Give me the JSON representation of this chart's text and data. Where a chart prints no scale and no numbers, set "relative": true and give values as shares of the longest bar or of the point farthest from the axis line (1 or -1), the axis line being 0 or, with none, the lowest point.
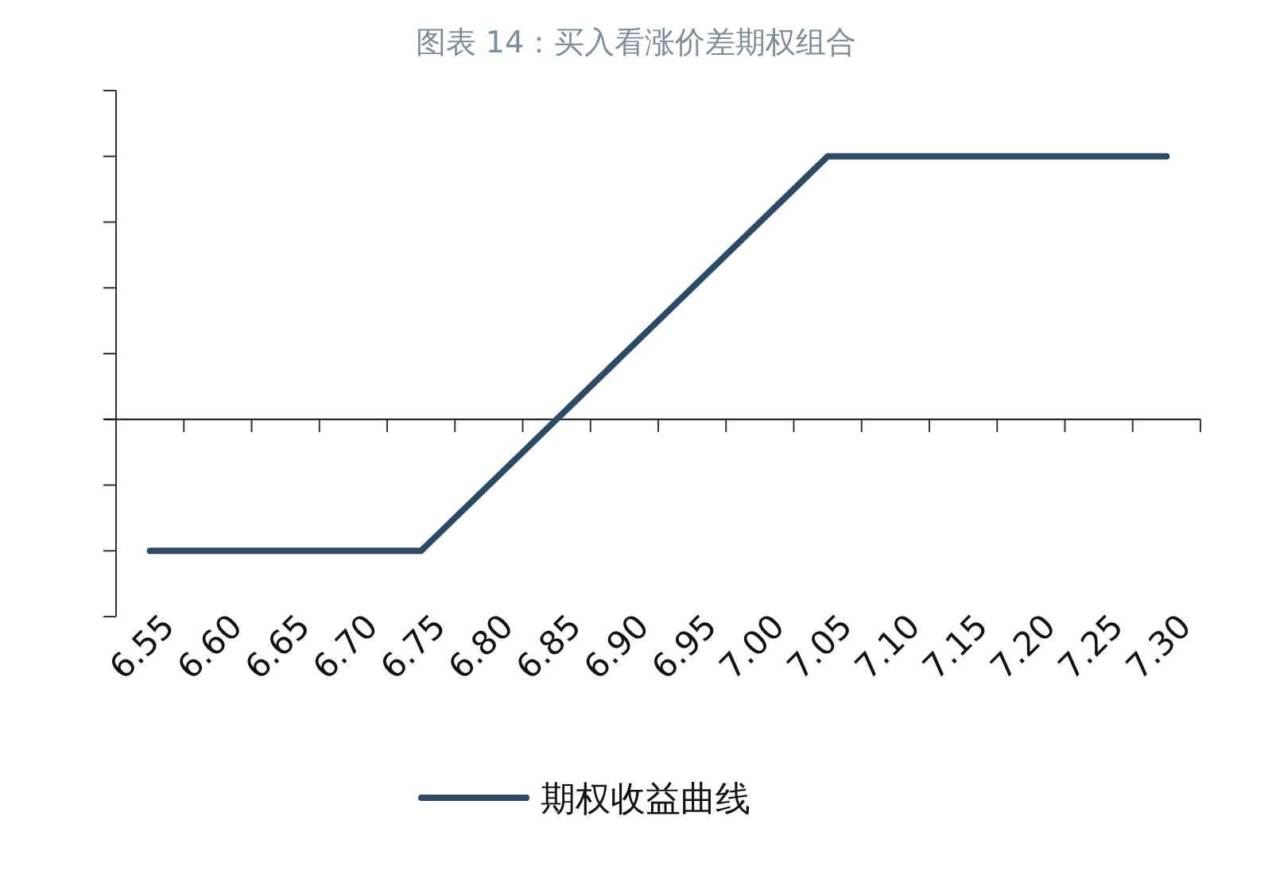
{
  "chart_data": {
    "type": "line",
    "title": "图表 14：买入看涨价差期权组合",
    "categories": [
      "6.55",
      "6.60",
      "6.65",
      "6.70",
      "6.75",
      "6.80",
      "6.85",
      "6.90",
      "6.95",
      "7.00",
      "7.05",
      "7.10",
      "7.15",
      "7.20",
      "7.25",
      "7.30"
    ],
    "relative": true,
    "legend": "bottom",
    "grid": false,
    "marker": "none",
    "line_style": "solid",
    "series": [
      {
        "name": "期权收益曲线",
        "color": "#2c4a63",
        "values": [
          -0.5,
          -0.5,
          -0.5,
          -0.5,
          -0.5,
          -0.25,
          0,
          0.25,
          0.5,
          0.75,
          1,
          1,
          1,
          1,
          1,
          1
        ]
      }
    ]
  }
}
